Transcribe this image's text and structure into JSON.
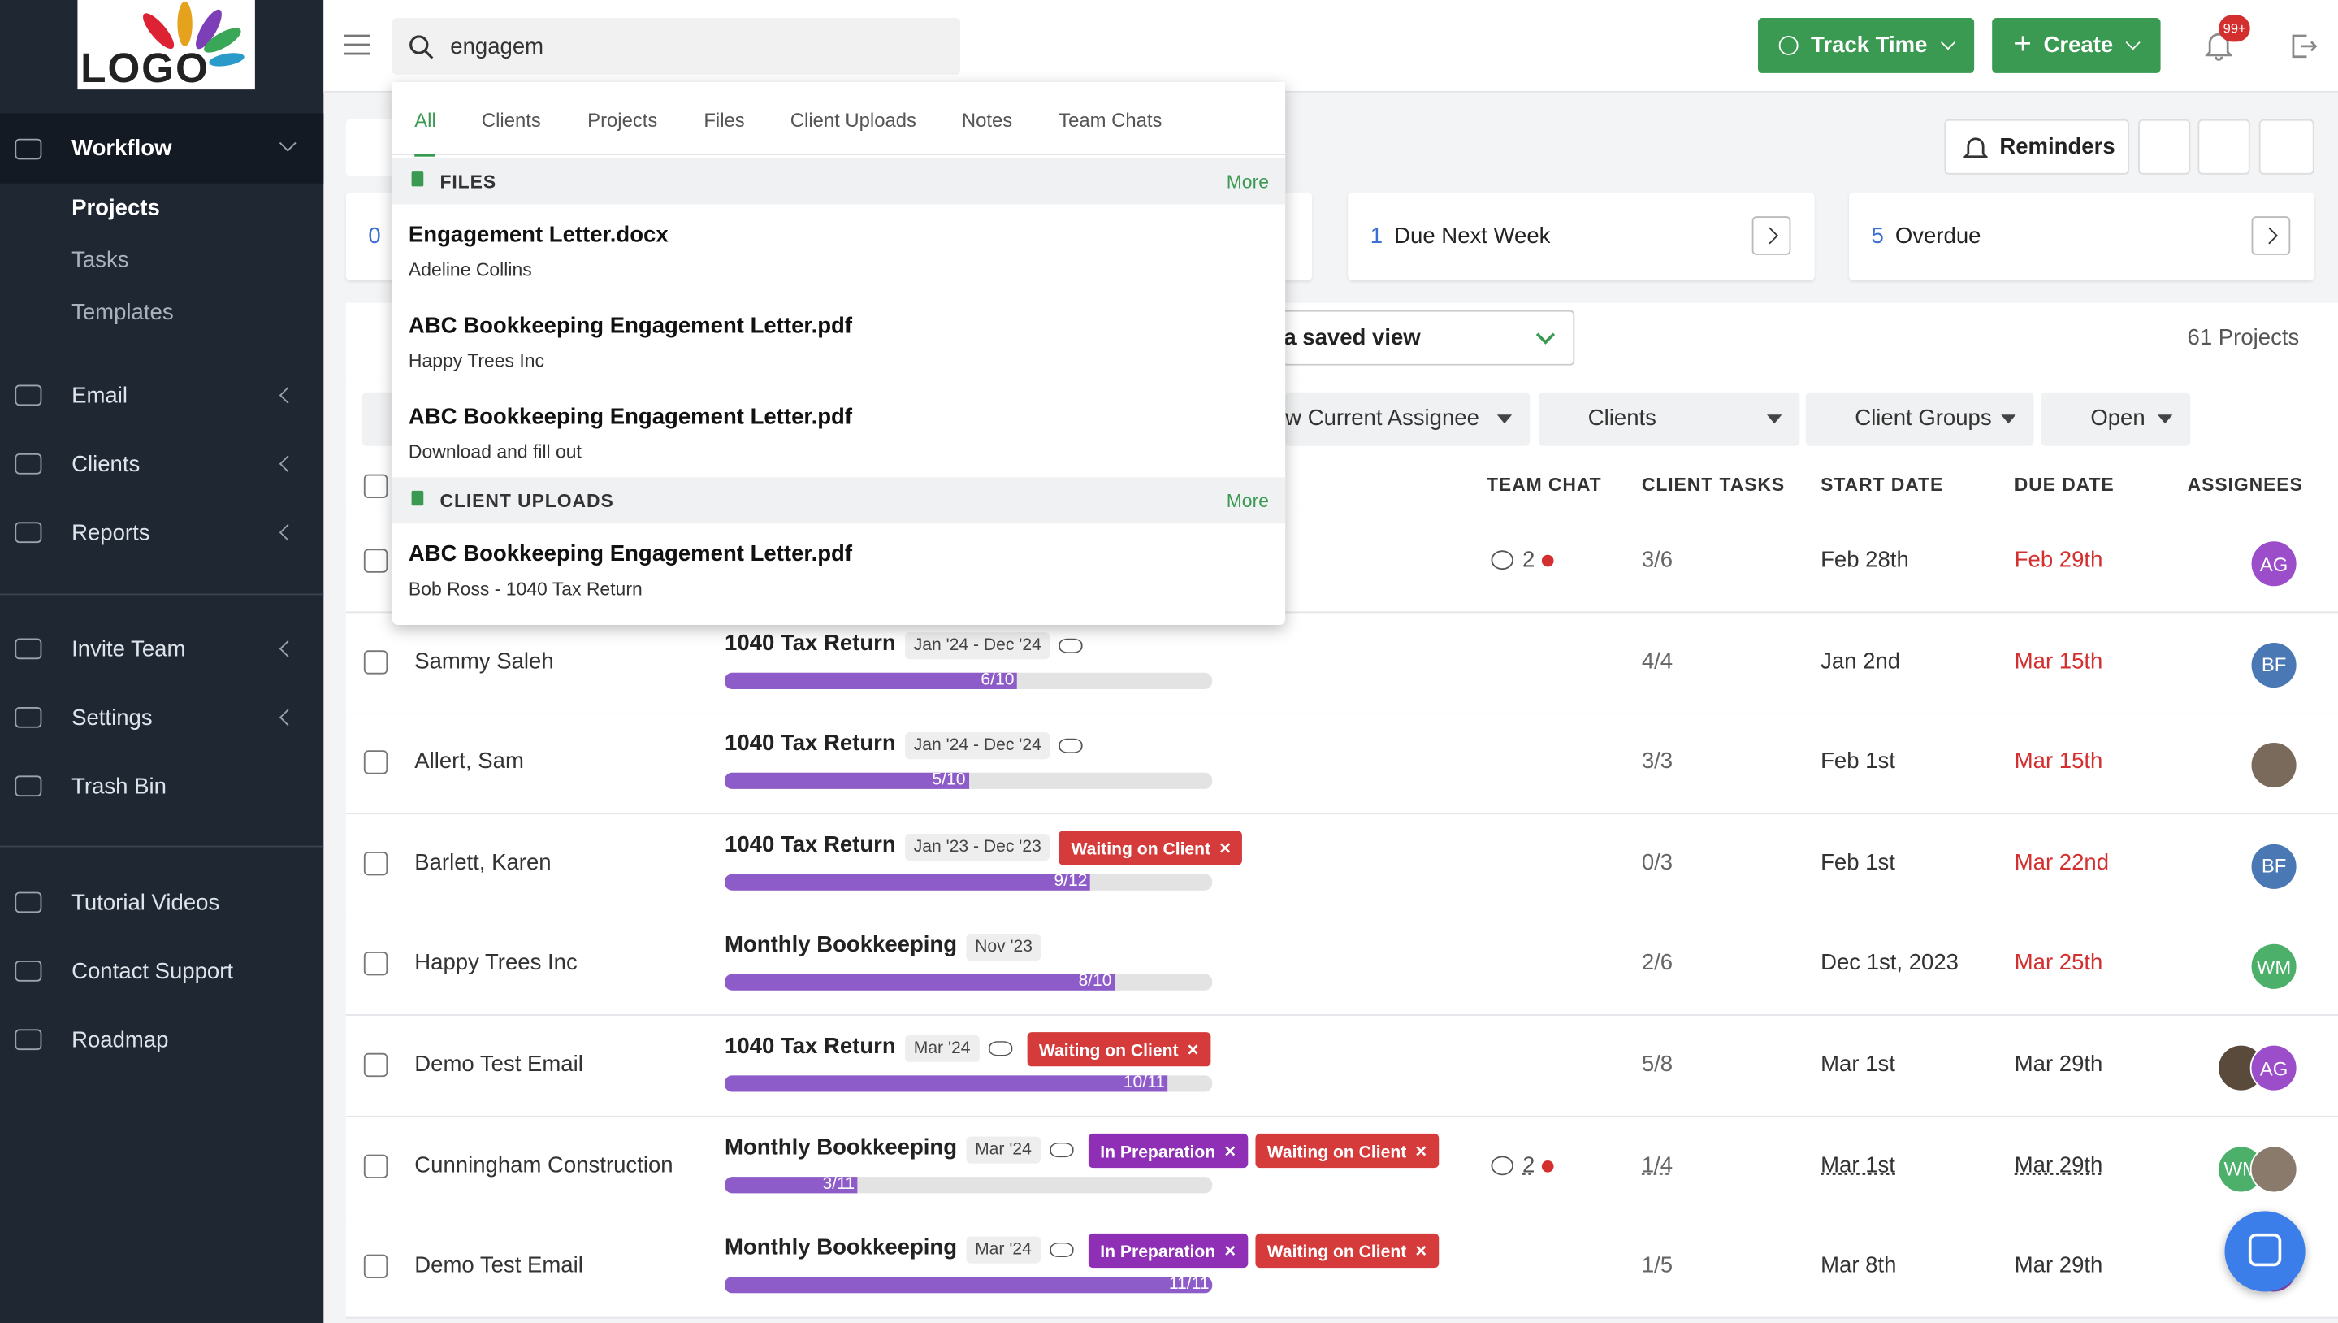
{
  "sidebar": {
    "logo": "LOGO",
    "nav": [
      {
        "label": "Workflow",
        "children": [
          "Projects",
          "Tasks",
          "Templates"
        ]
      },
      {
        "label": "Email"
      },
      {
        "label": "Clients"
      },
      {
        "label": "Reports"
      },
      {
        "label": "Invite Team"
      },
      {
        "label": "Settings"
      },
      {
        "label": "Trash Bin"
      },
      {
        "label": "Tutorial Videos"
      },
      {
        "label": "Contact Support"
      },
      {
        "label": "Roadmap"
      }
    ]
  },
  "topbar": {
    "track_time": "Track Time",
    "create": "Create",
    "badge": "99+"
  },
  "search": {
    "query": "engagem",
    "tabs": [
      "All",
      "Clients",
      "Projects",
      "Files",
      "Client Uploads",
      "Notes",
      "Team Chats"
    ],
    "sections": [
      {
        "title": "FILES",
        "more": "More",
        "items": [
          {
            "title": "Engagement Letter.docx",
            "subtitle": "Adeline Collins"
          },
          {
            "title": "ABC Bookkeeping Engagement Letter.pdf",
            "subtitle": "Happy Trees Inc"
          },
          {
            "title": "ABC Bookkeeping Engagement Letter.pdf",
            "subtitle": "Download and fill out"
          }
        ]
      },
      {
        "title": "CLIENT UPLOADS",
        "more": "More",
        "items": [
          {
            "title": "ABC Bookkeeping Engagement Letter.pdf",
            "subtitle": "Bob Ross - 1040 Tax Return"
          }
        ]
      }
    ]
  },
  "summary": [
    {
      "count": 0
    },
    {
      "count": 1,
      "label": "Due Next Week"
    },
    {
      "count": 5,
      "label": "Overdue"
    }
  ],
  "toolbar": {
    "reminders": "Reminders",
    "saved_view": "a saved view",
    "total": "61 Projects"
  },
  "filters": [
    "w Current Assignee",
    "Clients",
    "Client Groups",
    "Open"
  ],
  "table": {
    "columns": [
      "TEAM CHAT",
      "CLIENT TASKS",
      "START DATE",
      "DUE DATE",
      "ASSIGNEES"
    ],
    "rows": [
      {
        "chat": 2,
        "tasks": "3/6",
        "start": "Feb 28th",
        "due": "Feb 29th",
        "due_color": "#d32f2f",
        "avatars": [
          {
            "text": "AG",
            "color": "#9b4dca"
          }
        ]
      },
      {
        "name": "Sammy Saleh",
        "project": "1040 Tax Return",
        "period": "Jan '24 - Dec '24",
        "recurring": true,
        "tags": [],
        "progress": "6/10",
        "tasks": "4/4",
        "start": "Jan 2nd",
        "due": "Mar 15th",
        "due_color": "#d32f2f",
        "avatars": [
          {
            "text": "BF",
            "color": "#4a78b5"
          }
        ]
      },
      {
        "name": "Allert, Sam",
        "project": "1040 Tax Return",
        "period": "Jan '24 - Dec '24",
        "recurring": true,
        "tags": [],
        "progress": "5/10",
        "tasks": "3/3",
        "start": "Feb 1st",
        "due": "Mar 15th",
        "due_color": "#d32f2f",
        "avatars": [
          {
            "color": "#7a6a5c"
          }
        ]
      },
      {
        "name": "Barlett, Karen",
        "project": "1040 Tax Return",
        "period": "Jan '23 - Dec '23",
        "recurring": false,
        "tags": [
          {
            "text": "Waiting on Client",
            "color": "#d63b3b"
          }
        ],
        "progress": "9/12",
        "tasks": "0/3",
        "start": "Feb 1st",
        "due": "Mar 22nd",
        "due_color": "#d32f2f",
        "avatars": [
          {
            "text": "BF",
            "color": "#4a78b5"
          }
        ]
      },
      {
        "name": "Happy Trees Inc",
        "project": "Monthly Bookkeeping",
        "period": "Nov '23",
        "recurring": false,
        "tags": [],
        "progress": "8/10",
        "tasks": "2/6",
        "start": "Dec 1st, 2023",
        "due": "Mar 25th",
        "due_color": "#d32f2f",
        "avatars": [
          {
            "text": "WM",
            "color": "#4caf6a"
          }
        ]
      },
      {
        "name": "Demo Test Email",
        "project": "1040 Tax Return",
        "period": "Mar '24",
        "recurring": true,
        "tags": [
          {
            "text": "Waiting on Client",
            "color": "#d63b3b"
          }
        ],
        "progress": "10/11",
        "tasks": "5/8",
        "start": "Mar 1st",
        "due": "Mar 29th",
        "due_color": "#333333",
        "avatars": [
          {
            "color": "#5a4a3c"
          },
          {
            "text": "AG",
            "color": "#9b4dca"
          }
        ]
      },
      {
        "name": "Cunningham Construction",
        "project": "Monthly Bookkeeping",
        "period": "Mar '24",
        "recurring": true,
        "tags": [
          {
            "text": "In Preparation",
            "color": "#8e2fb5"
          },
          {
            "text": "Waiting on Client",
            "color": "#d63b3b"
          }
        ],
        "progress": "3/11",
        "chat": 2,
        "tasks": "1/4",
        "start": "Mar 1st",
        "due": "Mar 29th",
        "due_color": "#333333",
        "avatars": [
          {
            "text": "WM",
            "color": "#4caf6a"
          },
          {
            "color": "#8a7a6c"
          }
        ]
      },
      {
        "name": "Demo Test Email",
        "project": "Monthly Bookkeeping",
        "period": "Mar '24",
        "recurring": true,
        "tags": [
          {
            "text": "In Preparation",
            "color": "#8e2fb5"
          },
          {
            "text": "Waiting on Client",
            "color": "#d63b3b"
          }
        ],
        "progress": "11/11",
        "tasks": "1/5",
        "start": "Mar 8th",
        "due": "Mar 29th",
        "due_color": "#333333",
        "avatars": [
          {
            "text": "",
            "color": "#9b4dca"
          }
        ]
      }
    ]
  }
}
